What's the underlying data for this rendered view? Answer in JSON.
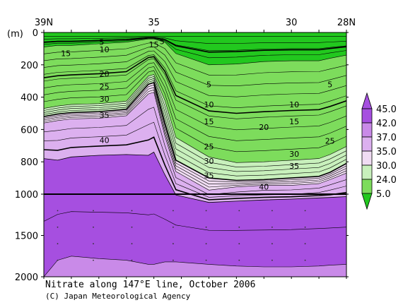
{
  "chart_data": {
    "type": "heatmap",
    "title": "Nitrate along 147°E line, October 2006",
    "credit": "(C) Japan Meteorological Agency",
    "ylabel": "(m)",
    "x_ticks": [
      "39N",
      "35",
      "30",
      "28N"
    ],
    "x_tick_values": [
      39,
      35,
      30,
      28
    ],
    "xlim": [
      39,
      28
    ],
    "y_ticks_upper": [
      "0",
      "200",
      "400",
      "600",
      "800",
      "1000"
    ],
    "y_tick_values_upper": [
      0,
      200,
      400,
      600,
      800,
      1000
    ],
    "y_ticks_lower": [
      "1500",
      "2000"
    ],
    "y_tick_values_lower": [
      1500,
      2000
    ],
    "ylim": [
      0,
      2000
    ],
    "colorbar": {
      "labels": [
        "45.0",
        "42.0",
        "37.0",
        "35.0",
        "30.0",
        "24.0",
        "5.0"
      ],
      "bin_colors": [
        "#a64fe0",
        "#c98ae8",
        "#dcb0ef",
        "#f0dcf3",
        "#c8f0bc",
        "#7ddc5c",
        "#22c81e"
      ]
    },
    "contour_labels": [
      {
        "text": "5",
        "lat": 34.7,
        "depth": 55
      },
      {
        "text": "15",
        "lat": 35.0,
        "depth": 75
      },
      {
        "text": "5",
        "lat": 36.9,
        "depth": 60
      },
      {
        "text": "10",
        "lat": 36.8,
        "depth": 105
      },
      {
        "text": "15",
        "lat": 38.2,
        "depth": 128
      },
      {
        "text": "20",
        "lat": 36.8,
        "depth": 255
      },
      {
        "text": "25",
        "lat": 36.8,
        "depth": 335
      },
      {
        "text": "30",
        "lat": 36.8,
        "depth": 410
      },
      {
        "text": "35",
        "lat": 36.8,
        "depth": 510
      },
      {
        "text": "40",
        "lat": 36.8,
        "depth": 665
      },
      {
        "text": "5",
        "lat": 33.0,
        "depth": 320
      },
      {
        "text": "10",
        "lat": 33.0,
        "depth": 445
      },
      {
        "text": "15",
        "lat": 33.0,
        "depth": 550
      },
      {
        "text": "25",
        "lat": 33.0,
        "depth": 705
      },
      {
        "text": "30",
        "lat": 33.0,
        "depth": 795
      },
      {
        "text": "35",
        "lat": 33.0,
        "depth": 885
      },
      {
        "text": "20",
        "lat": 31.0,
        "depth": 585
      },
      {
        "text": "40",
        "lat": 31.0,
        "depth": 955
      },
      {
        "text": "10",
        "lat": 29.9,
        "depth": 445
      },
      {
        "text": "15",
        "lat": 29.9,
        "depth": 550
      },
      {
        "text": "30",
        "lat": 29.9,
        "depth": 750
      },
      {
        "text": "35",
        "lat": 29.9,
        "depth": 825
      },
      {
        "text": "5",
        "lat": 28.6,
        "depth": 320
      },
      {
        "text": "25",
        "lat": 28.6,
        "depth": 670
      }
    ]
  }
}
